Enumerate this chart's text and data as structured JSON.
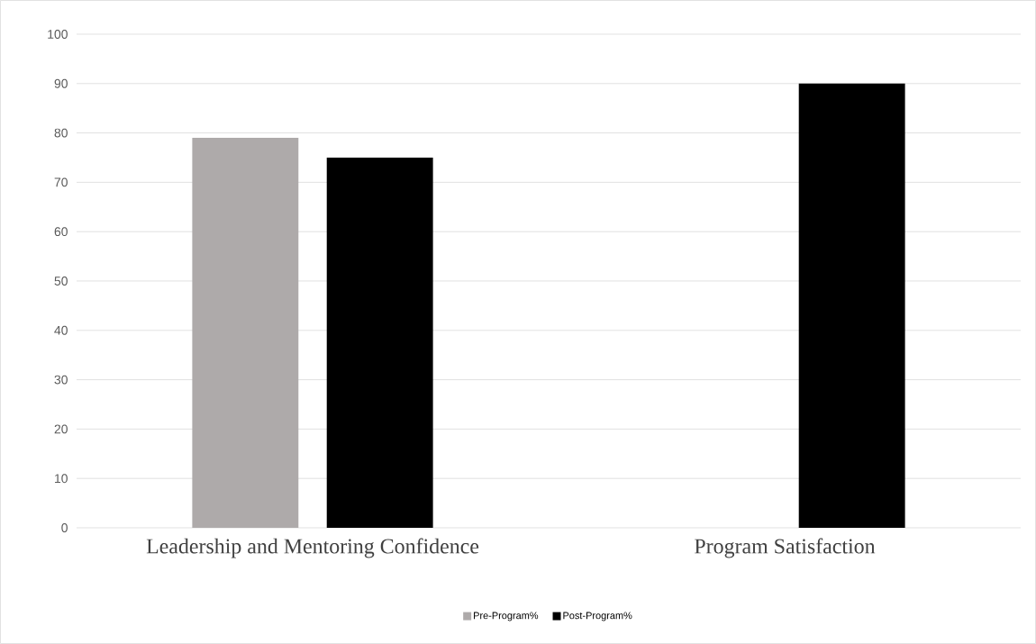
{
  "chart_data": {
    "type": "bar",
    "categories": [
      "Leadership and Mentoring Confidence",
      "Program Satisfaction"
    ],
    "series": [
      {
        "name": "Pre-Program%",
        "color": "#aeaaaa",
        "values": [
          79,
          null
        ]
      },
      {
        "name": "Post-Program%",
        "color": "#000000",
        "values": [
          75,
          90
        ]
      }
    ],
    "ylim": [
      0,
      100
    ],
    "yticks": [
      0,
      10,
      20,
      30,
      40,
      50,
      60,
      70,
      80,
      90,
      100
    ],
    "grid": "y",
    "legend": "bottom"
  }
}
